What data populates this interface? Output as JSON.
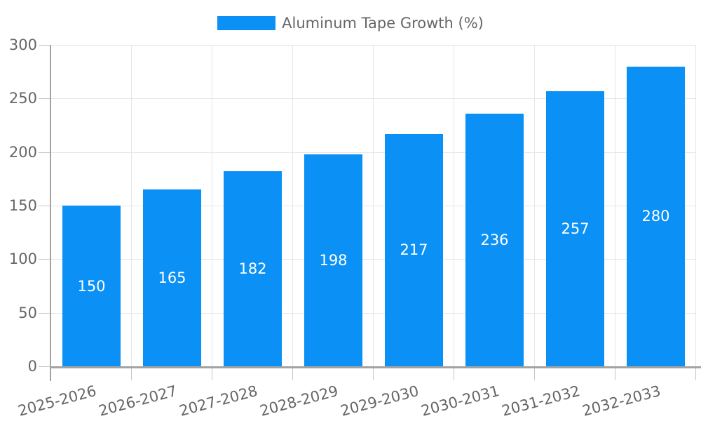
{
  "legend": {
    "label": "Aluminum Tape Growth (%)"
  },
  "colors": {
    "bar": "#0b90f5",
    "bar_label": "#ffffff",
    "axis_label": "#666666",
    "axis_line": "#a3a3a3",
    "tick_mark": "#c6c6c6",
    "gridline": "#e6e6e6",
    "background": "#ffffff"
  },
  "chart_data": {
    "type": "bar",
    "title": "",
    "series_name": "Aluminum Tape Growth (%)",
    "categories": [
      "2025-2026",
      "2026-2027",
      "2027-2028",
      "2028-2029",
      "2029-2030",
      "2030-2031",
      "2031-2032",
      "2032-2033"
    ],
    "values": [
      150,
      165,
      182,
      198,
      217,
      236,
      257,
      280
    ],
    "xlabel": "",
    "ylabel": "",
    "ylim": [
      0,
      300
    ],
    "yticks": [
      0,
      50,
      100,
      150,
      200,
      250,
      300
    ],
    "grid": true,
    "legend_position": "top",
    "bar_labels_inside": true,
    "x_label_rotation_deg": -15
  }
}
